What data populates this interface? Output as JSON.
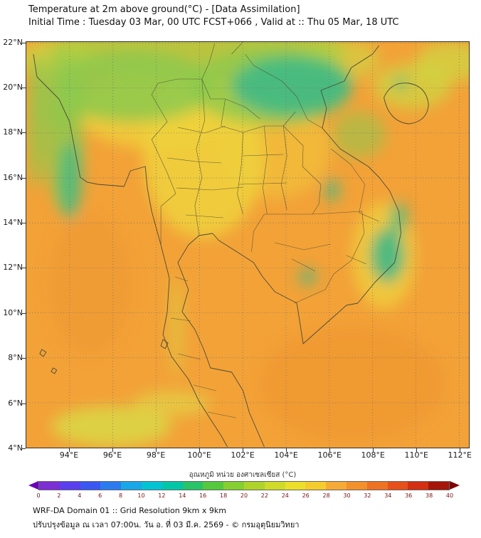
{
  "header": {
    "line1": "Temperature at 2m above ground(°C) - [Data Assimilation]",
    "line2": "Initial Time : Tuesday 03 Mar, 00 UTC FCST+066 , Valid at :: Thu 05 Mar, 18 UTC"
  },
  "map": {
    "lat_ticks": [
      "22°N",
      "20°N",
      "18°N",
      "16°N",
      "14°N",
      "12°N",
      "10°N",
      "8°N",
      "6°N",
      "4°N"
    ],
    "lat_values": [
      22,
      20,
      18,
      16,
      14,
      12,
      10,
      8,
      6,
      4
    ],
    "lon_ticks": [
      "94°E",
      "96°E",
      "98°E",
      "100°E",
      "102°E",
      "104°E",
      "106°E",
      "108°E",
      "110°E",
      "112°E"
    ],
    "lon_values": [
      94,
      96,
      98,
      100,
      102,
      104,
      106,
      108,
      110,
      112
    ],
    "lat_range": [
      4,
      22.05
    ],
    "lon_range": [
      92,
      112.45
    ]
  },
  "colorbar": {
    "label": "อุณหภูมิ หน่วย องศาเซลเซียส (°C)",
    "ticks": [
      0,
      2,
      4,
      6,
      8,
      10,
      12,
      14,
      16,
      18,
      20,
      22,
      24,
      26,
      28,
      30,
      32,
      34,
      36,
      38,
      40
    ],
    "segment_colors": [
      "#7c2fd4",
      "#5a3fee",
      "#3a57f2",
      "#2a7bf0",
      "#18a8e8",
      "#00c4d4",
      "#00c6a8",
      "#27c46a",
      "#55c83e",
      "#86cf30",
      "#aed42b",
      "#d0da28",
      "#ecdf2a",
      "#f6cb2e",
      "#f5ab36",
      "#f2902c",
      "#ee7223",
      "#e6511b",
      "#d32f12",
      "#a5150a"
    ],
    "left_arrow_color": "#6a00b8",
    "right_arrow_color": "#7e0000"
  },
  "footer": {
    "line1": "WRF-DA Domain 01 :: Grid Resolution 9km x 9km",
    "line2": "ปรับปรุงข้อมูล ณ เวลา 07:00น. วัน อ. ที่ 03 มี.ค. 2569 - © กรมอุตุนิยมวิทยา"
  }
}
